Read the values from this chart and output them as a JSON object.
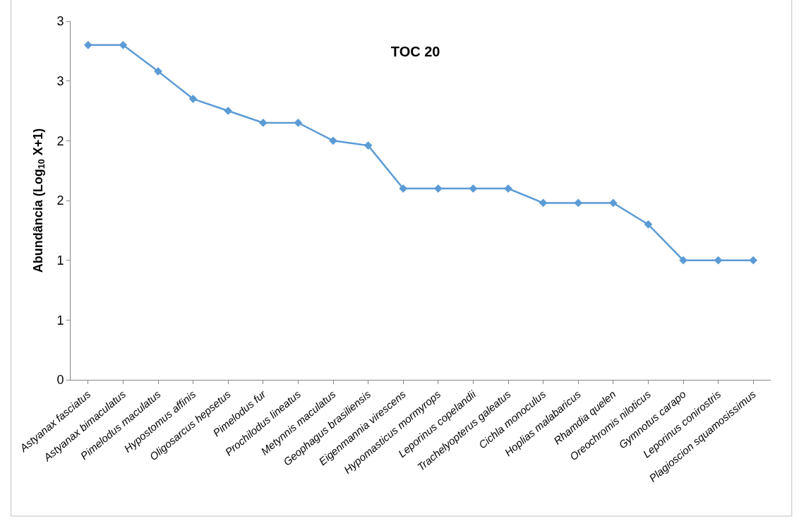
{
  "chart_data": {
    "type": "line",
    "title": "TOC 20",
    "ylabel": "Abundância (Log$_{10}$ X+1)",
    "categories": [
      "Astyanax fasciatus",
      "Astyanax bimaculatus",
      "Pimelodus maculatus",
      "Hypostomus affinis",
      "Oligosarcus hepsetus",
      "Pimelodus fur",
      "Prochilodus lineatus",
      "Metynnis maculatus",
      "Geophagus brasiliensis",
      "Eigenmannia virescens",
      "Hypomasticus mormyrops",
      "Leporinus copelandii",
      "Trachelyopterus galeatus",
      "Cichla monoculus",
      "Hoplias malabaricus",
      "Rhamdia quelen",
      "Oreochromis niloticus",
      "Gymnotus carapo",
      "Leporinus conirostris",
      "Plagioscion squamosissimus"
    ],
    "series": [
      {
        "color": "#5b9bd5",
        "values": [
          2.8,
          2.8,
          2.58,
          2.35,
          2.25,
          2.15,
          2.15,
          2.0,
          1.96,
          1.6,
          1.6,
          1.6,
          1.6,
          1.48,
          1.48,
          1.48,
          1.3,
          1.0,
          1.0,
          1.0
        ]
      }
    ],
    "ylim": [
      0,
      3
    ],
    "yticks": [
      0,
      {
        "value": 0.5,
        "label": "1"
      },
      1,
      {
        "value": 1.5,
        "label": "2"
      },
      2,
      {
        "value": 2.5,
        "label": "3"
      },
      3
    ],
    "marker": "diamond",
    "line_style": "solid"
  }
}
